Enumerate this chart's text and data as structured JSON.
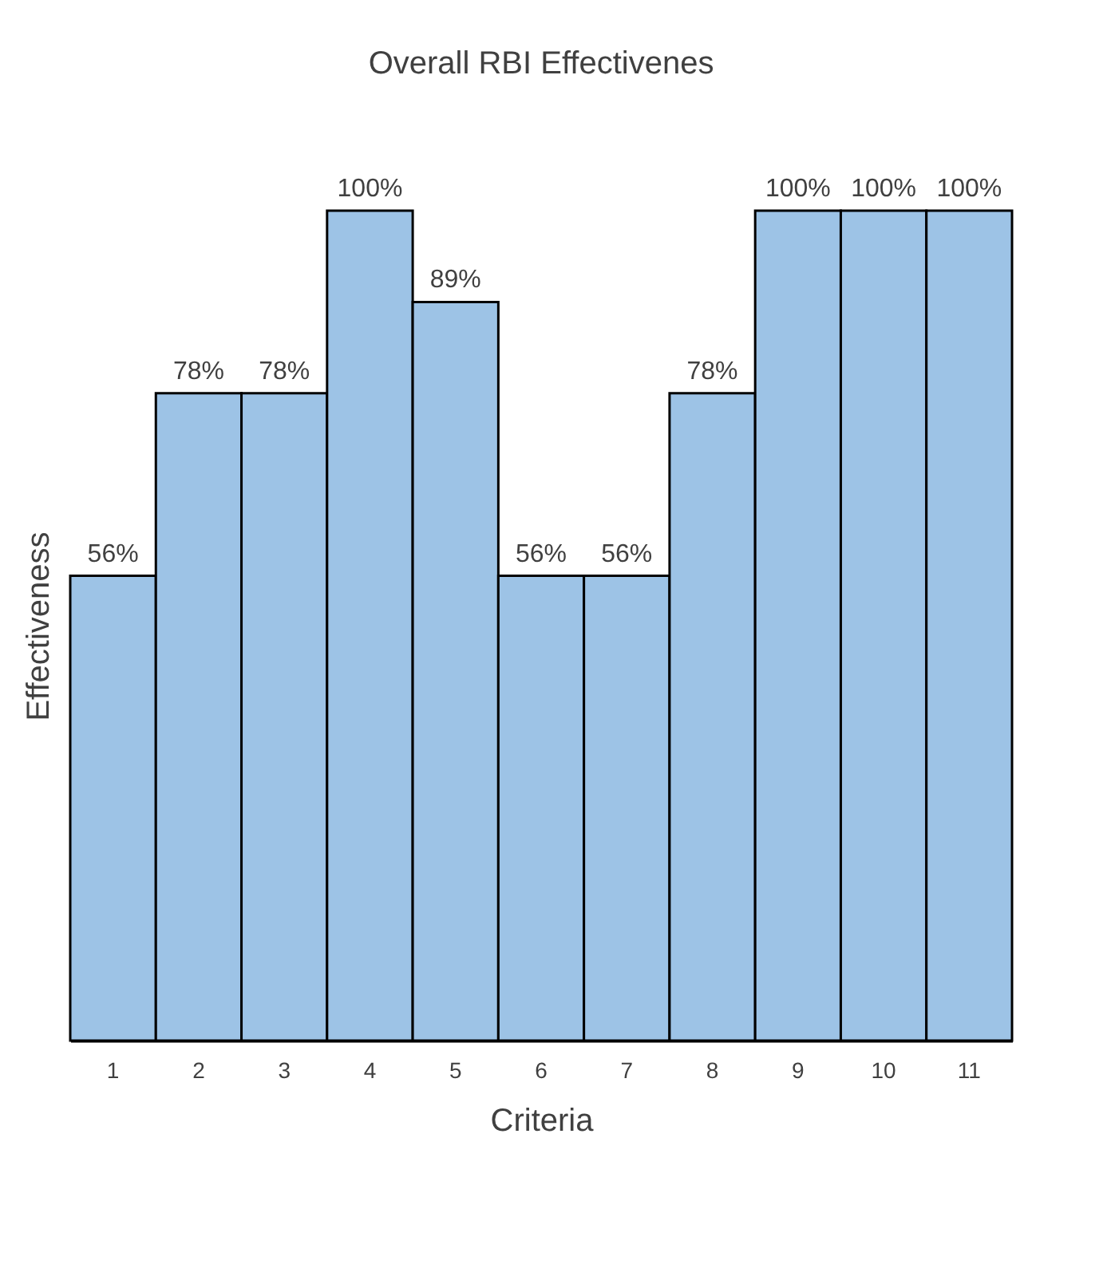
{
  "chart_data": {
    "type": "bar",
    "title": "Overall RBI Effectivenes",
    "xlabel": "Criteria",
    "ylabel": "Effectiveness",
    "categories": [
      "1",
      "2",
      "3",
      "4",
      "5",
      "6",
      "7",
      "8",
      "9",
      "10",
      "11"
    ],
    "values": [
      56,
      78,
      78,
      100,
      89,
      56,
      56,
      78,
      100,
      100,
      100
    ],
    "value_labels": [
      "56%",
      "78%",
      "78%",
      "100%",
      "89%",
      "56%",
      "56%",
      "78%",
      "100%",
      "100%",
      "100%"
    ],
    "color": "#9dc3e6",
    "grid": false
  }
}
